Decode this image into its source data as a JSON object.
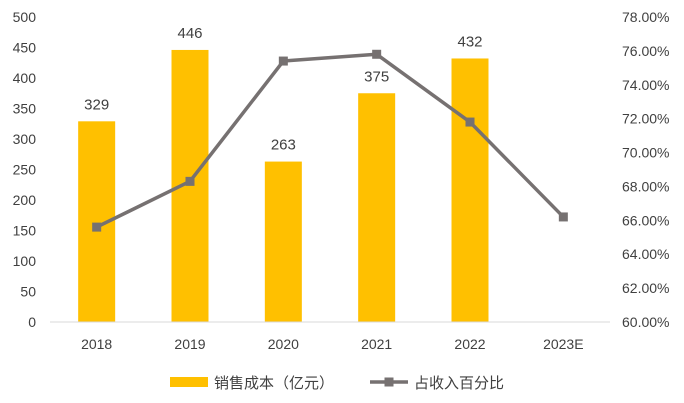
{
  "chart_data": {
    "type": "bar",
    "categories": [
      "2018",
      "2019",
      "2020",
      "2021",
      "2022",
      "2023E"
    ],
    "series": [
      {
        "name": "销售成本（亿元）",
        "type": "bar",
        "axis": "left",
        "values": [
          329,
          446,
          263,
          375,
          432,
          null
        ],
        "data_labels": [
          "329",
          "446",
          "263",
          "375",
          "432",
          ""
        ],
        "color": "#FFC000"
      },
      {
        "name": "占收入百分比",
        "type": "line",
        "axis": "right",
        "values": [
          65.6,
          68.3,
          75.4,
          75.8,
          71.8,
          66.2
        ],
        "color": "#767171"
      }
    ],
    "y_left": {
      "ylim": [
        0,
        500
      ],
      "ticks": [
        "0",
        "50",
        "100",
        "150",
        "200",
        "250",
        "300",
        "350",
        "400",
        "450",
        "500"
      ]
    },
    "y_right": {
      "ylim": [
        60,
        78
      ],
      "ticks": [
        "60.00%",
        "62.00%",
        "64.00%",
        "66.00%",
        "68.00%",
        "70.00%",
        "72.00%",
        "74.00%",
        "76.00%",
        "78.00%"
      ]
    },
    "title": "",
    "xlabel": "",
    "ylabel": "",
    "grid": false,
    "legend_position": "bottom"
  }
}
